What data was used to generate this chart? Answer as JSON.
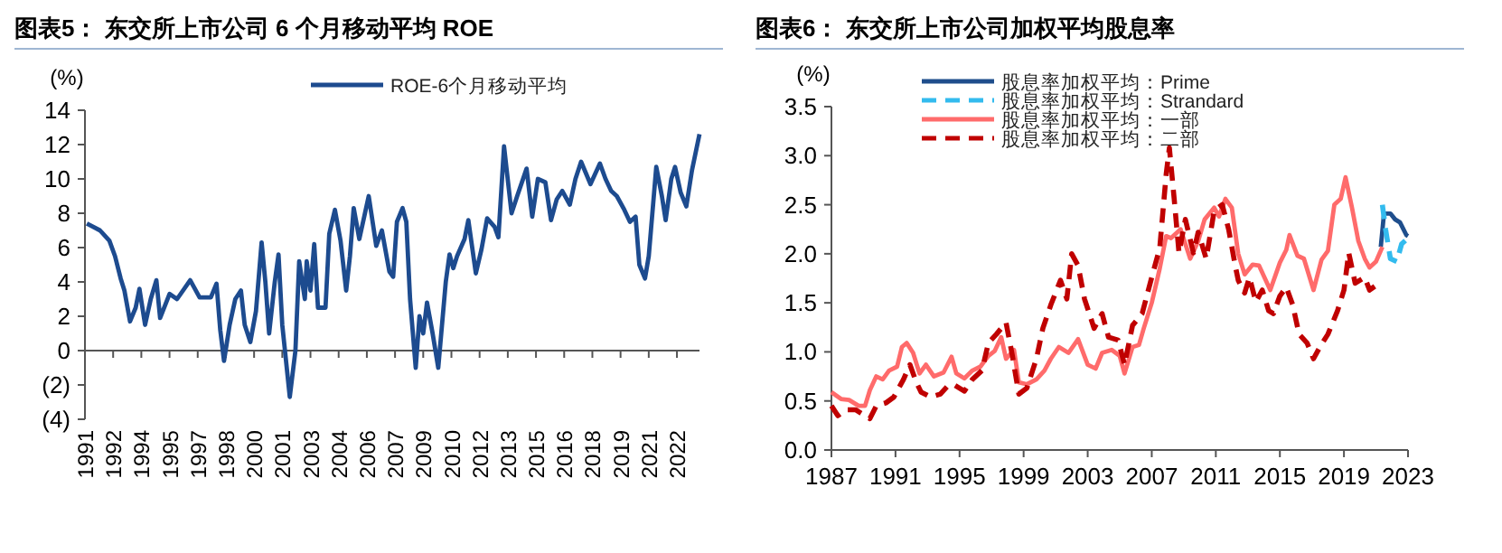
{
  "chart_data": [
    {
      "type": "line",
      "title": "图表5： 东交所上市公司 6 个月移动平均 ROE",
      "ylabel": "(%)",
      "legend": "top",
      "xlim": [
        1991,
        2023.7
      ],
      "xticks": [
        {
          "value": 1991,
          "label": "1991"
        },
        {
          "value": 1992.5,
          "label": "1992"
        },
        {
          "value": 1994,
          "label": "1994"
        },
        {
          "value": 1995.5,
          "label": "1995"
        },
        {
          "value": 1997,
          "label": "1997"
        },
        {
          "value": 1998.5,
          "label": "1998"
        },
        {
          "value": 2000,
          "label": "2000"
        },
        {
          "value": 2001.5,
          "label": "2001"
        },
        {
          "value": 2003,
          "label": "2003"
        },
        {
          "value": 2004.5,
          "label": "2004"
        },
        {
          "value": 2006,
          "label": "2006"
        },
        {
          "value": 2007.5,
          "label": "2007"
        },
        {
          "value": 2009,
          "label": "2009"
        },
        {
          "value": 2010.5,
          "label": "2010"
        },
        {
          "value": 2012,
          "label": "2012"
        },
        {
          "value": 2013.5,
          "label": "2013"
        },
        {
          "value": 2015,
          "label": "2015"
        },
        {
          "value": 2016.5,
          "label": "2016"
        },
        {
          "value": 2018,
          "label": "2018"
        },
        {
          "value": 2019.5,
          "label": "2019"
        },
        {
          "value": 2021,
          "label": "2021"
        },
        {
          "value": 2022.5,
          "label": "2022"
        }
      ],
      "ylim": [
        -4,
        14
      ],
      "yticks": [
        {
          "value": -4,
          "label": "(4)"
        },
        {
          "value": -2,
          "label": "(2)"
        },
        0,
        2,
        4,
        6,
        8,
        10,
        12,
        14
      ],
      "x": [
        1991.1,
        1991.8,
        1992.3,
        1992.6,
        1992.9,
        1993.1,
        1993.4,
        1993.7,
        1993.9,
        1994.2,
        1994.5,
        1994.8,
        1995.0,
        1995.5,
        1995.9,
        1996.6,
        1997.1,
        1997.7,
        1998.0,
        1998.2,
        1998.4,
        1998.7,
        1999.0,
        1999.3,
        1999.5,
        1999.8,
        2000.1,
        2000.4,
        2000.6,
        2000.8,
        2001.1,
        2001.3,
        2001.5,
        2001.9,
        2002.2,
        2002.4,
        2002.7,
        2002.8,
        2003.0,
        2003.2,
        2003.4,
        2003.8,
        2004.0,
        2004.3,
        2004.6,
        2004.9,
        2005.1,
        2005.3,
        2005.6,
        2005.9,
        2006.1,
        2006.5,
        2006.8,
        2007.2,
        2007.4,
        2007.6,
        2007.9,
        2008.1,
        2008.3,
        2008.6,
        2008.8,
        2009.0,
        2009.2,
        2009.5,
        2009.8,
        2010.2,
        2010.4,
        2010.6,
        2010.8,
        2011.2,
        2011.4,
        2011.8,
        2012.1,
        2012.4,
        2012.8,
        2013.0,
        2013.3,
        2013.7,
        2014.0,
        2014.5,
        2014.8,
        2015.1,
        2015.5,
        2015.8,
        2016.1,
        2016.4,
        2016.8,
        2017.1,
        2017.4,
        2017.9,
        2018.4,
        2018.7,
        2019.0,
        2019.3,
        2019.7,
        2020.0,
        2020.3,
        2020.5,
        2020.8,
        2021.0,
        2021.4,
        2021.7,
        2021.9,
        2022.2,
        2022.4,
        2022.7,
        2023.0,
        2023.3,
        2023.7
      ],
      "series": [
        {
          "name": "ROE-6个月移动平均",
          "color": "#1d4b8f",
          "line_style": "solid",
          "values": [
            7.4,
            7.0,
            6.4,
            5.5,
            4.2,
            3.5,
            1.7,
            2.5,
            3.6,
            1.5,
            3.0,
            4.1,
            1.9,
            3.3,
            3.0,
            4.1,
            3.1,
            3.1,
            3.9,
            1.2,
            -0.6,
            1.5,
            3.0,
            3.5,
            1.5,
            0.5,
            2.3,
            6.3,
            4.0,
            1.0,
            4.0,
            5.6,
            1.5,
            -2.7,
            0.0,
            5.2,
            3.0,
            5.2,
            3.5,
            6.2,
            2.5,
            2.5,
            6.8,
            8.2,
            6.4,
            3.5,
            5.5,
            8.3,
            6.5,
            8.0,
            9.0,
            6.1,
            7.0,
            4.6,
            4.3,
            7.5,
            8.3,
            7.5,
            3.0,
            -1.0,
            2.0,
            1.0,
            2.8,
            1.0,
            -1.0,
            4.0,
            5.6,
            4.8,
            5.5,
            6.5,
            7.6,
            4.5,
            5.9,
            7.7,
            7.2,
            6.6,
            11.9,
            8.0,
            9.0,
            10.6,
            7.8,
            10.0,
            9.8,
            7.6,
            8.8,
            9.3,
            8.5,
            10.0,
            11.0,
            9.7,
            10.9,
            10.0,
            9.3,
            9.0,
            8.2,
            7.5,
            7.8,
            5.0,
            4.2,
            5.5,
            10.7,
            9.0,
            7.6,
            10.0,
            10.7,
            9.2,
            8.4,
            10.5,
            12.6
          ]
        }
      ]
    },
    {
      "type": "line",
      "title": "图表6： 东交所上市公司加权平均股息率",
      "ylabel": "(%)",
      "legend": "top left",
      "xlim": [
        1987,
        2023
      ],
      "xticks": [
        1987,
        1991,
        1995,
        1999,
        2003,
        2007,
        2011,
        2015,
        2019,
        2023
      ],
      "ylim": [
        0,
        3.5
      ],
      "yticks": [
        {
          "value": 0,
          "label": "0.0"
        },
        {
          "value": 0.5,
          "label": "0.5"
        },
        {
          "value": 1,
          "label": "1.0"
        },
        {
          "value": 1.5,
          "label": "1.5"
        },
        {
          "value": 2,
          "label": "2.0"
        },
        {
          "value": 2.5,
          "label": "2.5"
        },
        {
          "value": 3,
          "label": "3.0"
        },
        {
          "value": 3.5,
          "label": "3.5"
        }
      ],
      "series": [
        {
          "name": "股息率加权平均：Prime",
          "color": "#1f4e8c",
          "line_style": "solid",
          "x": [
            2021.3,
            2021.5,
            2021.9,
            2022.2,
            2022.5,
            2022.9,
            2023.0
          ],
          "values": [
            2.07,
            2.41,
            2.41,
            2.35,
            2.32,
            2.19,
            2.18
          ]
        },
        {
          "name": "股息率加权平均：Strandard",
          "color": "#33bbee",
          "line_style": "dashed",
          "x": [
            2021.4,
            2021.6,
            2021.9,
            2022.3,
            2022.6,
            2023.0
          ],
          "values": [
            2.5,
            2.25,
            1.95,
            1.92,
            2.1,
            2.16
          ]
        },
        {
          "name": "股息率加权平均：一部",
          "color": "#ff6b6b",
          "line_style": "solid",
          "x": [
            1987.0,
            1987.6,
            1988.1,
            1988.7,
            1989.1,
            1989.4,
            1989.8,
            1990.2,
            1990.6,
            1991.1,
            1991.4,
            1991.7,
            1992.1,
            1992.5,
            1992.9,
            1993.4,
            1994.0,
            1994.5,
            1994.8,
            1995.3,
            1995.8,
            1996.3,
            1996.8,
            1997.2,
            1997.6,
            1997.9,
            1998.4,
            1998.7,
            1999.2,
            1999.8,
            2000.3,
            2000.7,
            2001.2,
            2001.8,
            2002.4,
            2003.0,
            2003.5,
            2003.9,
            2004.5,
            2005.0,
            2005.3,
            2005.8,
            2006.2,
            2006.5,
            2007.0,
            2007.5,
            2007.9,
            2008.2,
            2008.8,
            2009.4,
            2009.9,
            2010.3,
            2010.9,
            2011.2,
            2011.6,
            2012.0,
            2012.4,
            2012.8,
            2013.3,
            2013.7,
            2014.4,
            2015.0,
            2015.4,
            2015.6,
            2016.1,
            2016.5,
            2017.1,
            2017.6,
            2018.0,
            2018.4,
            2018.8,
            2019.1,
            2019.5,
            2019.9,
            2020.3,
            2020.6,
            2021.0,
            2021.4
          ],
          "values": [
            0.59,
            0.52,
            0.51,
            0.45,
            0.45,
            0.61,
            0.75,
            0.72,
            0.81,
            0.85,
            1.05,
            1.09,
            0.99,
            0.78,
            0.87,
            0.75,
            0.79,
            0.95,
            0.78,
            0.73,
            0.81,
            0.85,
            0.96,
            1.01,
            1.15,
            0.93,
            1.02,
            0.69,
            0.67,
            0.72,
            0.81,
            0.93,
            1.05,
            0.99,
            1.13,
            0.87,
            0.83,
            0.99,
            1.02,
            0.96,
            0.78,
            1.05,
            1.07,
            1.24,
            1.5,
            1.85,
            2.18,
            2.16,
            2.25,
            1.95,
            2.13,
            2.35,
            2.47,
            2.38,
            2.56,
            2.47,
            2.0,
            1.79,
            1.89,
            1.88,
            1.63,
            1.91,
            2.04,
            2.19,
            1.98,
            1.95,
            1.63,
            1.94,
            2.03,
            2.5,
            2.56,
            2.78,
            2.47,
            2.13,
            1.95,
            1.86,
            1.92,
            2.07
          ]
        },
        {
          "name": "股息率加权平均：二部",
          "color": "#c00000",
          "line_style": "dashed",
          "x": [
            1987.0,
            1987.4,
            1987.9,
            1988.5,
            1989.1,
            1989.4,
            1989.8,
            1990.4,
            1990.9,
            1991.5,
            1991.9,
            1992.3,
            1992.6,
            1993.2,
            1993.8,
            1994.3,
            1994.7,
            1995.3,
            1995.8,
            1996.4,
            1996.8,
            1997.3,
            1997.9,
            1998.3,
            1998.7,
            1999.2,
            1999.8,
            2000.2,
            2000.7,
            2001.3,
            2001.7,
            2002.0,
            2002.4,
            2002.8,
            2003.4,
            2003.9,
            2004.3,
            2004.9,
            2005.3,
            2005.8,
            2006.4,
            2006.9,
            2007.5,
            2007.9,
            2008.1,
            2008.4,
            2008.7,
            2009.1,
            2009.6,
            2009.9,
            2010.4,
            2010.9,
            2011.4,
            2011.8,
            2012.2,
            2012.4,
            2012.8,
            2013.1,
            2013.5,
            2013.9,
            2014.3,
            2014.6,
            2015.0,
            2015.4,
            2015.8,
            2016.2,
            2016.7,
            2017.1,
            2017.5,
            2018.0,
            2018.6,
            2019.0,
            2019.3,
            2019.7,
            2020.3,
            2020.6,
            2021.2
          ],
          "values": [
            0.45,
            0.35,
            0.41,
            0.41,
            0.35,
            0.32,
            0.45,
            0.48,
            0.54,
            0.72,
            0.87,
            0.69,
            0.59,
            0.54,
            0.57,
            0.66,
            0.66,
            0.6,
            0.72,
            0.81,
            1.09,
            1.18,
            1.3,
            0.96,
            0.57,
            0.63,
            0.93,
            1.24,
            1.48,
            1.73,
            1.54,
            2.0,
            1.88,
            1.54,
            1.24,
            1.39,
            1.15,
            1.12,
            0.87,
            1.27,
            1.39,
            1.7,
            2.06,
            2.81,
            3.08,
            2.56,
            2.01,
            2.35,
            2.01,
            2.22,
            1.95,
            2.44,
            2.5,
            2.25,
            1.89,
            1.73,
            1.6,
            1.76,
            1.51,
            1.63,
            1.42,
            1.39,
            1.57,
            1.66,
            1.48,
            1.18,
            1.09,
            0.93,
            1.05,
            1.18,
            1.42,
            1.63,
            2.01,
            1.7,
            1.76,
            1.63,
            1.7
          ]
        }
      ]
    }
  ]
}
